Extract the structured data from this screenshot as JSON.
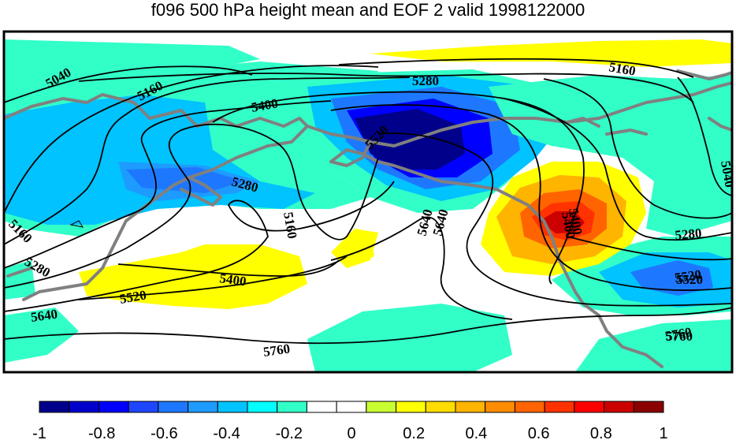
{
  "title": "f096 500 hPa height mean and EOF 2 valid 1998122000",
  "colorbar": {
    "colors": [
      "#00008b",
      "#0000cd",
      "#0000ff",
      "#1e46ff",
      "#1e78ff",
      "#1e9bff",
      "#00c3ff",
      "#00ffff",
      "#32ffc8",
      "#ffffff",
      "#ffffff",
      "#c8ff32",
      "#ffff00",
      "#ffdc00",
      "#ffb400",
      "#ff8c00",
      "#ff6400",
      "#ff3200",
      "#ff0000",
      "#cd0000",
      "#8b0000"
    ],
    "levels": [
      -1,
      -0.9,
      -0.8,
      -0.7,
      -0.6,
      -0.5,
      -0.4,
      -0.3,
      -0.2,
      -0.1,
      0,
      0.1,
      0.2,
      0.3,
      0.4,
      0.5,
      0.6,
      0.7,
      0.8,
      0.9,
      1
    ],
    "tick_labels": [
      "-1",
      "-0.8",
      "-0.6",
      "-0.4",
      "-0.2",
      "0",
      "0.2",
      "0.4",
      "0.6",
      "0.8",
      "1"
    ]
  },
  "contour_labels": [
    "5040",
    "5160",
    "5280",
    "5400",
    "5520",
    "5640",
    "5760",
    "5160",
    "5280",
    "5400",
    "5520",
    "5640",
    "5160",
    "5280",
    "5400",
    "5520",
    "5640",
    "5760",
    "5280",
    "5400",
    "5520",
    "5760",
    "5160",
    "5040"
  ],
  "colors": {
    "coastline": "#808080",
    "contour": "#000000",
    "frame": "#000000"
  }
}
